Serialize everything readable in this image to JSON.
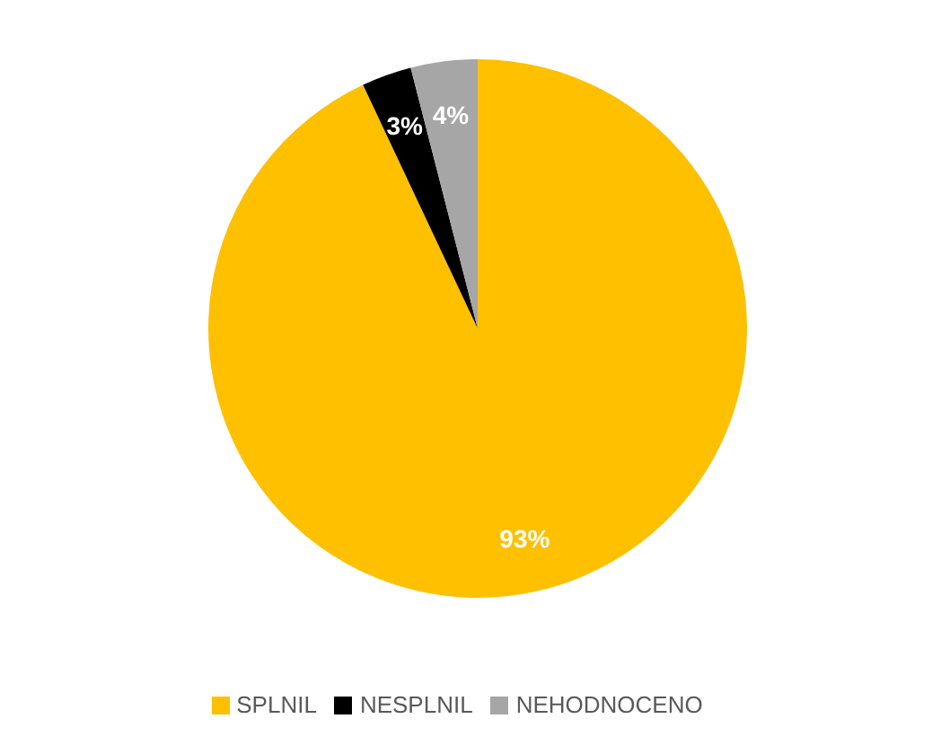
{
  "chart_data": {
    "type": "pie",
    "categories": [
      "SPLNIL",
      "NESPLNIL",
      "NEHODNOCENO"
    ],
    "values": [
      93,
      3,
      4
    ],
    "colors": [
      "#ffc000",
      "#000000",
      "#a6a6a6"
    ],
    "value_labels": [
      "93%",
      "3%",
      "4%"
    ],
    "legend": "bottom"
  }
}
